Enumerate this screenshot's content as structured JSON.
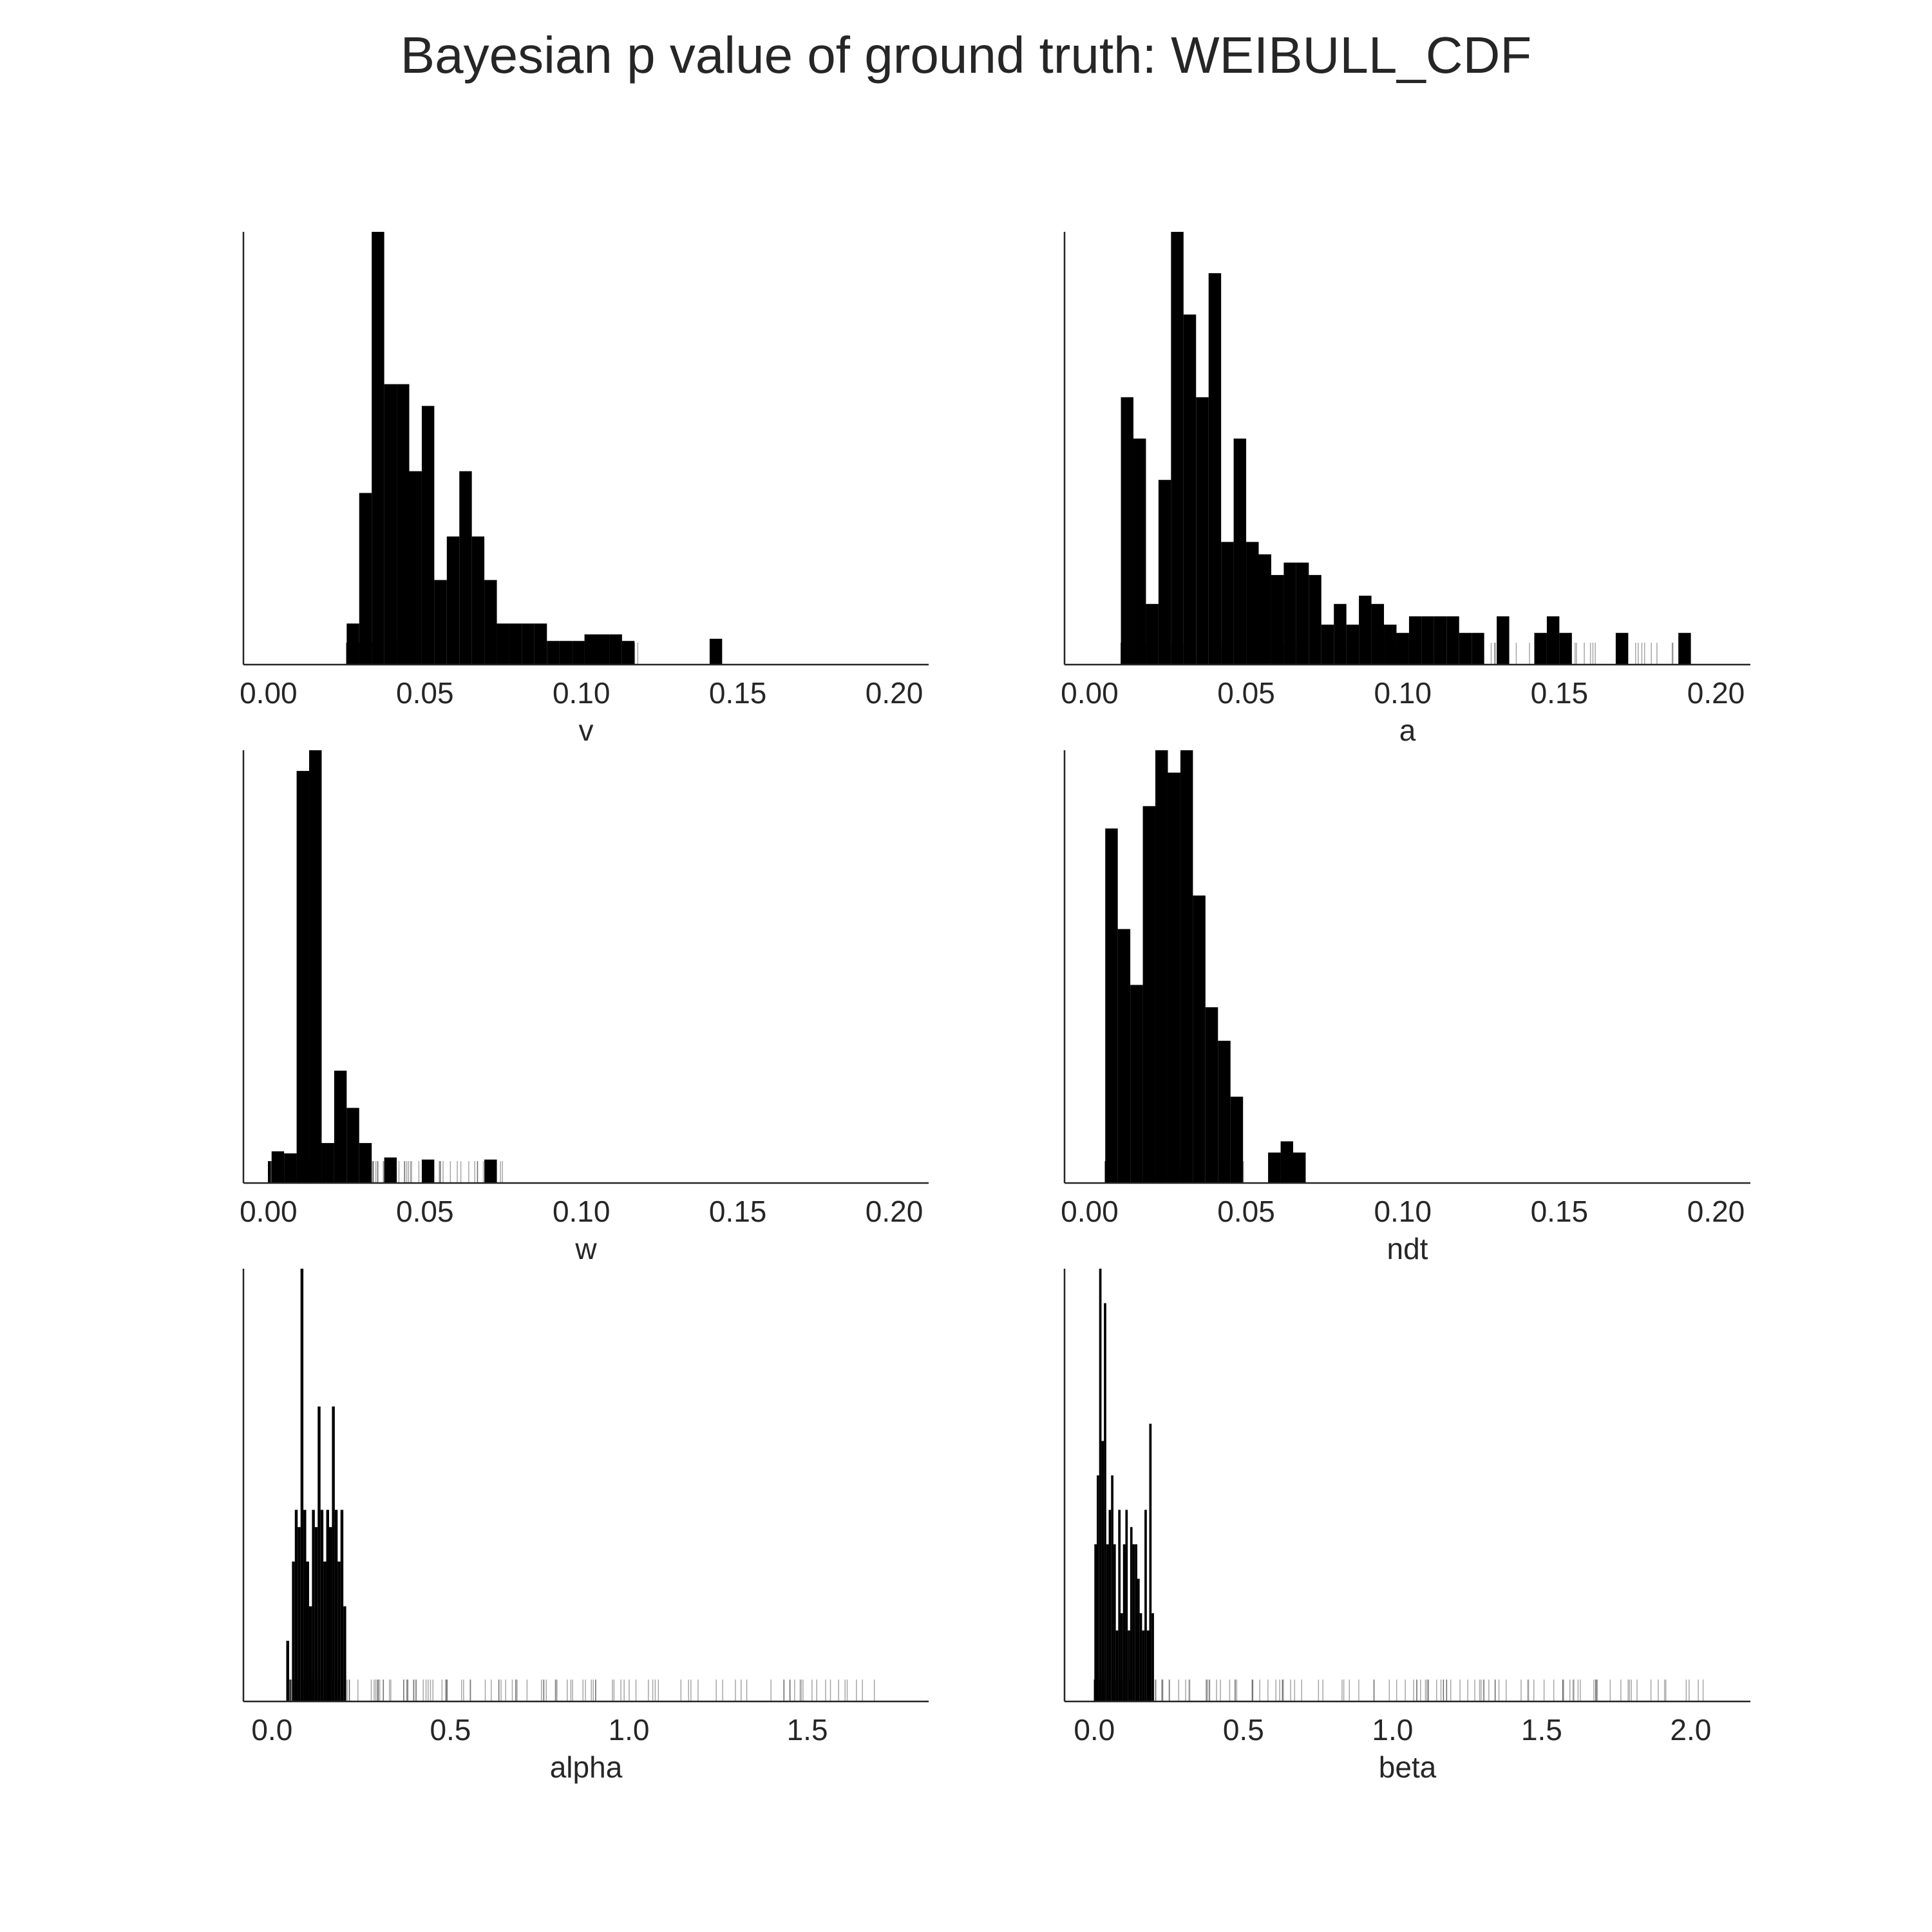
{
  "title": "Bayesian p value of ground truth: WEIBULL_CDF",
  "colors": {
    "bars": "#000000",
    "rug": "#000000",
    "axis": "#262626",
    "text": "#262626"
  },
  "chart_data": [
    {
      "type": "histogram",
      "xlabel": "v",
      "xlim": [
        -0.008,
        0.211
      ],
      "xticks": [
        "0.00",
        "0.05",
        "0.10",
        "0.15",
        "0.20"
      ],
      "xtick_values": [
        0.0,
        0.05,
        0.1,
        0.15,
        0.2
      ],
      "yticks_visible": false,
      "grid": false,
      "bin_width": 0.004,
      "bins_start": [
        0.025,
        0.029,
        0.033,
        0.037,
        0.041,
        0.045,
        0.049,
        0.053,
        0.057,
        0.061,
        0.065,
        0.069,
        0.073,
        0.077,
        0.081,
        0.085,
        0.089,
        0.093,
        0.097,
        0.101,
        0.105,
        0.109,
        0.113,
        0.141
      ],
      "counts": [
        1,
        7,
        19,
        12,
        12,
        8,
        11,
        3,
        5,
        8,
        5,
        3,
        1,
        1,
        1,
        1,
        0.2,
        0.2,
        0.2,
        0.5,
        0.5,
        0.5,
        0.2,
        0.3
      ],
      "rug_range": [
        0.025,
        0.12
      ]
    },
    {
      "type": "histogram",
      "xlabel": "a",
      "xlim": [
        -0.008,
        0.211
      ],
      "xticks": [
        "0.00",
        "0.05",
        "0.10",
        "0.15",
        "0.20"
      ],
      "xtick_values": [
        0.0,
        0.05,
        0.1,
        0.15,
        0.2
      ],
      "yticks_visible": false,
      "grid": false,
      "bin_width": 0.004,
      "bins_start": [
        0.01,
        0.014,
        0.018,
        0.022,
        0.026,
        0.03,
        0.034,
        0.038,
        0.042,
        0.046,
        0.05,
        0.054,
        0.058,
        0.062,
        0.066,
        0.07,
        0.074,
        0.078,
        0.082,
        0.086,
        0.09,
        0.094,
        0.098,
        0.102,
        0.106,
        0.11,
        0.114,
        0.118,
        0.122,
        0.13,
        0.142,
        0.146,
        0.15,
        0.168,
        0.188
      ],
      "counts": [
        6,
        5,
        1,
        4,
        10,
        8,
        6,
        9,
        2.5,
        5,
        2.5,
        2.2,
        1.7,
        2,
        2,
        1.7,
        0.5,
        1,
        0.5,
        1.2,
        1,
        0.5,
        0.3,
        0.7,
        0.7,
        0.7,
        0.7,
        0.3,
        0.3,
        0.7,
        0.3,
        0.7,
        0.3,
        0.3,
        0.3
      ],
      "rug_range": [
        0.01,
        0.19
      ]
    },
    {
      "type": "histogram",
      "xlabel": "w",
      "xlim": [
        -0.008,
        0.211
      ],
      "xticks": [
        "0.00",
        "0.05",
        "0.10",
        "0.15",
        "0.20"
      ],
      "xtick_values": [
        0.0,
        0.05,
        0.1,
        0.15,
        0.2
      ],
      "yticks_visible": false,
      "grid": false,
      "bin_width": 0.004,
      "bins_start": [
        0.001,
        0.005,
        0.009,
        0.013,
        0.017,
        0.021,
        0.025,
        0.029,
        0.037,
        0.049,
        0.069
      ],
      "counts": [
        0.6,
        0.5,
        19,
        20,
        1,
        4.5,
        2.7,
        1,
        0.3,
        0.2,
        0.2
      ],
      "rug_range": [
        0.0,
        0.075
      ]
    },
    {
      "type": "histogram",
      "xlabel": "ndt",
      "xlim": [
        -0.008,
        0.211
      ],
      "xticks": [
        "0.00",
        "0.05",
        "0.10",
        "0.15",
        "0.20"
      ],
      "xtick_values": [
        0.0,
        0.05,
        0.1,
        0.15,
        0.2
      ],
      "yticks_visible": false,
      "grid": false,
      "bin_width": 0.004,
      "bins_start": [
        0.005,
        0.009,
        0.013,
        0.017,
        0.021,
        0.025,
        0.029,
        0.033,
        0.037,
        0.041,
        0.045,
        0.057,
        0.061,
        0.065
      ],
      "counts": [
        15,
        10.5,
        8,
        16,
        18.5,
        17.5,
        18.5,
        12,
        7,
        5.5,
        3,
        0.5,
        1,
        0.5
      ],
      "rug_range": [
        0.005,
        0.05
      ]
    },
    {
      "type": "histogram",
      "xlabel": "alpha",
      "xlim": [
        -0.08,
        1.84
      ],
      "xticks": [
        "0.0",
        "0.5",
        "1.0",
        "1.5"
      ],
      "xtick_values": [
        0.0,
        0.5,
        1.0,
        1.5
      ],
      "yticks_visible": false,
      "grid": false,
      "bin_width": 0.008,
      "bins_start": [
        0.04,
        0.056,
        0.064,
        0.072,
        0.08,
        0.088,
        0.096,
        0.104,
        0.112,
        0.12,
        0.128,
        0.136,
        0.144,
        0.152,
        0.16,
        0.168,
        0.176,
        0.184,
        0.192,
        0.2
      ],
      "counts": [
        1.2,
        3.5,
        5,
        4.5,
        12,
        5,
        3.5,
        2.2,
        5,
        4.5,
        8,
        5,
        3.5,
        5,
        4.5,
        8,
        5,
        3.5,
        5,
        2.2
      ],
      "rug_range": [
        0.05,
        1.73
      ]
    },
    {
      "type": "histogram",
      "xlabel": "beta",
      "xlim": [
        -0.1,
        2.2
      ],
      "xticks": [
        "0.0",
        "0.5",
        "1.0",
        "1.5",
        "2.0"
      ],
      "xtick_values": [
        0.0,
        0.5,
        1.0,
        1.5,
        2.0
      ],
      "yticks_visible": false,
      "grid": false,
      "bin_width": 0.008,
      "bins_start": [
        0.0,
        0.008,
        0.016,
        0.024,
        0.032,
        0.04,
        0.048,
        0.056,
        0.064,
        0.072,
        0.08,
        0.088,
        0.096,
        0.104,
        0.112,
        0.12,
        0.128,
        0.136,
        0.144,
        0.152,
        0.16,
        0.168,
        0.176,
        0.184,
        0.192
      ],
      "counts": [
        4,
        6,
        12,
        7,
        11,
        4,
        5,
        6,
        4,
        1.5,
        5,
        2,
        4,
        5,
        1.5,
        4.5,
        4,
        4,
        3,
        2,
        1.5,
        5,
        1.5,
        7.5,
        2
      ],
      "rug_range": [
        0.0,
        2.08
      ]
    }
  ]
}
